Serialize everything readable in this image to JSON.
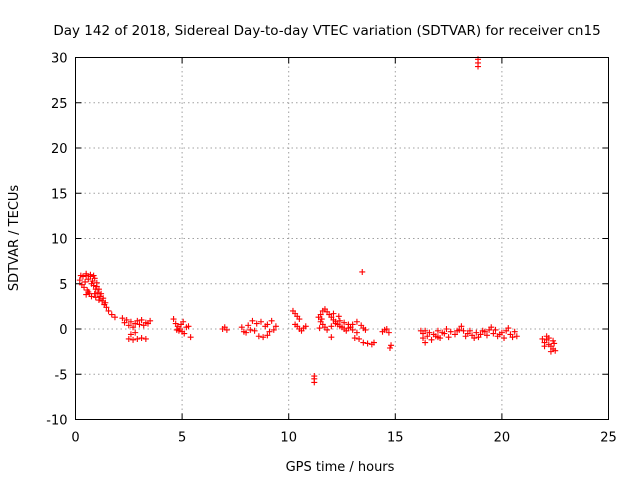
{
  "chart_data": {
    "type": "scatter",
    "title": "Day 142 of 2018, Sidereal Day-to-day VTEC variation (SDTVAR) for receiver cn15",
    "xlabel": "GPS time / hours",
    "ylabel": "SDTVAR / TECUs",
    "xlim": [
      0,
      25
    ],
    "ylim": [
      -10,
      30
    ],
    "x_ticks": [
      "0",
      "5",
      "10",
      "15",
      "20",
      "25"
    ],
    "y_ticks": [
      "-10",
      "-5",
      "0",
      "5",
      "10",
      "15",
      "20",
      "25",
      "30"
    ],
    "grid": true,
    "marker": "+",
    "marker_color": "#ff0000",
    "segments": [
      {
        "name": "arc-1",
        "points": [
          [
            0.2,
            5.4
          ],
          [
            0.35,
            5.8
          ],
          [
            0.5,
            5.9
          ],
          [
            0.6,
            5.5
          ],
          [
            0.7,
            5.8
          ],
          [
            0.75,
            5.0
          ],
          [
            0.85,
            4.8
          ],
          [
            0.95,
            4.4
          ],
          [
            1.05,
            4.0
          ],
          [
            1.15,
            3.6
          ],
          [
            1.25,
            3.1
          ],
          [
            1.35,
            2.7
          ],
          [
            1.45,
            2.4
          ],
          [
            1.55,
            2.0
          ],
          [
            1.7,
            1.6
          ],
          [
            1.85,
            1.3
          ],
          [
            0.4,
            4.6
          ],
          [
            0.55,
            4.3
          ],
          [
            0.65,
            3.9
          ],
          [
            0.8,
            5.3
          ],
          [
            0.9,
            5.6
          ],
          [
            1.0,
            5.1
          ],
          [
            0.3,
            4.9
          ],
          [
            0.45,
            5.2
          ],
          [
            0.6,
            4.1
          ],
          [
            0.75,
            3.6
          ],
          [
            0.9,
            3.9
          ],
          [
            1.0,
            4.7
          ],
          [
            1.1,
            4.4
          ],
          [
            1.2,
            3.9
          ],
          [
            0.25,
            5.9
          ],
          [
            0.5,
            6.1
          ],
          [
            0.7,
            6.0
          ],
          [
            0.85,
            5.9
          ],
          [
            0.5,
            3.8
          ],
          [
            0.95,
            3.5
          ],
          [
            1.1,
            3.2
          ],
          [
            1.3,
            3.4
          ],
          [
            1.4,
            2.9
          ]
        ]
      },
      {
        "name": "arc-2",
        "points": [
          [
            2.2,
            1.2
          ],
          [
            2.4,
            1.0
          ],
          [
            2.6,
            0.8
          ],
          [
            2.8,
            0.6
          ],
          [
            3.0,
            0.5
          ],
          [
            3.2,
            0.4
          ],
          [
            3.4,
            0.6
          ],
          [
            3.5,
            0.9
          ],
          [
            2.5,
            -1.1
          ],
          [
            2.7,
            -1.2
          ],
          [
            2.9,
            -1.1
          ],
          [
            3.1,
            -1.0
          ],
          [
            3.3,
            -1.1
          ],
          [
            2.3,
            0.7
          ],
          [
            2.5,
            0.4
          ],
          [
            2.7,
            0.2
          ],
          [
            2.9,
            0.9
          ],
          [
            3.1,
            1.0
          ],
          [
            3.3,
            0.7
          ],
          [
            2.6,
            -0.6
          ],
          [
            2.8,
            -0.4
          ]
        ]
      },
      {
        "name": "arc-3",
        "points": [
          [
            4.6,
            1.1
          ],
          [
            4.7,
            0.6
          ],
          [
            4.8,
            0.3
          ],
          [
            4.9,
            0.0
          ],
          [
            5.0,
            -0.3
          ],
          [
            5.1,
            -0.5
          ],
          [
            4.75,
            -0.1
          ],
          [
            4.95,
            0.5
          ],
          [
            5.2,
            0.2
          ],
          [
            5.3,
            0.3
          ],
          [
            5.4,
            -0.9
          ],
          [
            5.05,
            0.8
          ],
          [
            4.85,
            -0.2
          ]
        ]
      },
      {
        "name": "arc-4",
        "points": [
          [
            6.9,
            0.0
          ],
          [
            7.0,
            0.2
          ],
          [
            7.1,
            -0.1
          ]
        ]
      },
      {
        "name": "arc-5",
        "points": [
          [
            7.8,
            0.2
          ],
          [
            7.9,
            -0.3
          ],
          [
            8.0,
            -0.4
          ],
          [
            8.1,
            0.4
          ],
          [
            8.3,
            0.9
          ],
          [
            8.5,
            0.6
          ],
          [
            8.7,
            0.8
          ],
          [
            8.9,
            0.3
          ],
          [
            9.0,
            0.5
          ],
          [
            9.2,
            0.9
          ],
          [
            9.4,
            0.3
          ],
          [
            8.6,
            -0.8
          ],
          [
            8.8,
            -0.9
          ],
          [
            9.0,
            -0.7
          ],
          [
            8.4,
            -0.2
          ],
          [
            9.1,
            -0.3
          ],
          [
            9.3,
            -0.1
          ],
          [
            8.2,
            -0.1
          ]
        ]
      },
      {
        "name": "arc-6",
        "points": [
          [
            10.2,
            2.0
          ],
          [
            10.3,
            1.7
          ],
          [
            10.4,
            1.4
          ],
          [
            10.5,
            1.1
          ],
          [
            10.3,
            0.5
          ],
          [
            10.4,
            0.3
          ],
          [
            10.5,
            0.0
          ],
          [
            10.6,
            -0.2
          ],
          [
            10.7,
            0.1
          ],
          [
            10.8,
            0.3
          ],
          [
            11.2,
            -5.2
          ],
          [
            11.2,
            -5.5
          ],
          [
            11.2,
            -5.9
          ]
        ]
      },
      {
        "name": "arc-7",
        "points": [
          [
            11.4,
            1.3
          ],
          [
            11.5,
            1.6
          ],
          [
            11.6,
            2.0
          ],
          [
            11.7,
            2.2
          ],
          [
            11.8,
            1.9
          ],
          [
            11.9,
            1.6
          ],
          [
            12.0,
            1.3
          ],
          [
            12.1,
            1.0
          ],
          [
            12.2,
            0.8
          ],
          [
            12.3,
            0.5
          ],
          [
            12.4,
            0.3
          ],
          [
            12.5,
            0.2
          ],
          [
            12.6,
            0.0
          ],
          [
            12.7,
            -0.2
          ],
          [
            12.8,
            0.1
          ],
          [
            12.9,
            0.2
          ],
          [
            13.0,
            0.5
          ],
          [
            13.2,
            0.8
          ],
          [
            13.4,
            0.4
          ],
          [
            13.5,
            0.1
          ],
          [
            13.6,
            -0.1
          ],
          [
            11.5,
            0.8
          ],
          [
            11.6,
            0.5
          ],
          [
            11.7,
            0.2
          ],
          [
            11.8,
            -0.1
          ],
          [
            12.0,
            0.3
          ],
          [
            12.2,
            0.6
          ],
          [
            12.4,
            0.9
          ],
          [
            12.6,
            0.7
          ],
          [
            12.8,
            0.5
          ],
          [
            13.0,
            -0.1
          ],
          [
            13.2,
            -0.4
          ],
          [
            13.3,
            -1.1
          ],
          [
            13.5,
            -1.5
          ],
          [
            13.7,
            -1.6
          ],
          [
            13.9,
            -1.7
          ],
          [
            14.0,
            -1.5
          ],
          [
            13.1,
            -1.0
          ],
          [
            12.0,
            -0.9
          ],
          [
            13.45,
            6.3
          ],
          [
            11.45,
            0.1
          ],
          [
            11.55,
            1.1
          ],
          [
            12.1,
            1.7
          ],
          [
            12.35,
            1.4
          ]
        ]
      },
      {
        "name": "arc-8",
        "points": [
          [
            14.4,
            -0.3
          ],
          [
            14.5,
            -0.1
          ],
          [
            14.6,
            0.0
          ],
          [
            14.7,
            -0.4
          ],
          [
            14.8,
            -1.8
          ],
          [
            14.75,
            -2.1
          ]
        ]
      },
      {
        "name": "arc-9",
        "points": [
          [
            16.2,
            -0.2
          ],
          [
            16.3,
            -1.0
          ],
          [
            16.4,
            -1.5
          ],
          [
            16.5,
            -0.8
          ],
          [
            16.6,
            -0.4
          ],
          [
            16.8,
            -0.6
          ],
          [
            17.0,
            -0.2
          ],
          [
            17.2,
            -0.4
          ],
          [
            17.4,
            0.0
          ],
          [
            17.6,
            -0.3
          ],
          [
            17.8,
            -0.6
          ],
          [
            18.0,
            -0.1
          ],
          [
            18.2,
            -0.2
          ],
          [
            18.4,
            -0.5
          ],
          [
            18.6,
            -0.7
          ],
          [
            18.8,
            -0.4
          ],
          [
            19.0,
            -0.6
          ],
          [
            19.2,
            -0.3
          ],
          [
            19.4,
            -0.1
          ],
          [
            19.6,
            -0.5
          ],
          [
            19.8,
            -0.8
          ],
          [
            20.0,
            -0.4
          ],
          [
            20.2,
            -0.2
          ],
          [
            20.4,
            -0.6
          ],
          [
            20.6,
            -0.3
          ],
          [
            20.7,
            -0.8
          ],
          [
            16.4,
            -0.2
          ],
          [
            16.7,
            -1.2
          ],
          [
            16.9,
            -0.8
          ],
          [
            17.1,
            -1.0
          ],
          [
            17.3,
            -0.5
          ],
          [
            17.5,
            -0.9
          ],
          [
            17.9,
            -0.2
          ],
          [
            18.1,
            0.3
          ],
          [
            18.3,
            -0.8
          ],
          [
            18.5,
            -0.2
          ],
          [
            18.7,
            -1.0
          ],
          [
            19.1,
            -0.2
          ],
          [
            19.3,
            -0.7
          ],
          [
            19.5,
            0.2
          ],
          [
            19.7,
            -0.1
          ],
          [
            19.9,
            -0.6
          ],
          [
            20.1,
            -1.0
          ],
          [
            20.3,
            0.1
          ],
          [
            20.5,
            -0.9
          ],
          [
            16.3,
            -0.5
          ],
          [
            17.0,
            -0.9
          ],
          [
            18.9,
            -0.9
          ],
          [
            18.88,
            29.0
          ],
          [
            18.88,
            29.4
          ],
          [
            18.88,
            29.8
          ]
        ]
      },
      {
        "name": "arc-10",
        "points": [
          [
            21.9,
            -1.1
          ],
          [
            22.0,
            -1.5
          ],
          [
            22.1,
            -1.2
          ],
          [
            22.2,
            -1.7
          ],
          [
            22.3,
            -1.9
          ],
          [
            22.4,
            -2.2
          ],
          [
            22.5,
            -2.4
          ],
          [
            22.2,
            -1.0
          ],
          [
            22.4,
            -1.3
          ],
          [
            22.0,
            -1.9
          ],
          [
            22.3,
            -2.5
          ],
          [
            22.1,
            -0.8
          ],
          [
            22.45,
            -1.6
          ]
        ]
      }
    ]
  }
}
